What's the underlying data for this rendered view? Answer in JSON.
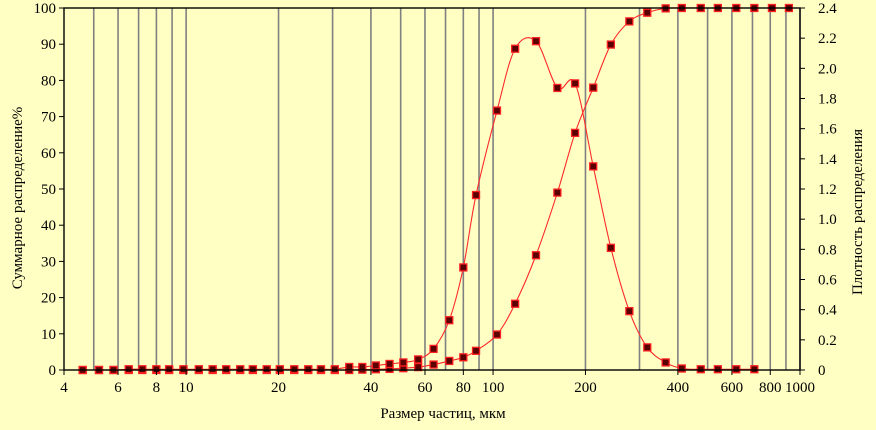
{
  "chart_data": {
    "type": "scatter",
    "xlabel": "Размер частиц, мкм",
    "ylabel_left": "Суммарное распределение%",
    "ylabel_right": "Плотность распределения",
    "x_scale": "log",
    "xlim": [
      4,
      1000
    ],
    "ylim_left": [
      0,
      100
    ],
    "ylim_right": [
      0,
      2.4
    ],
    "grid": true,
    "colors": {
      "background": "#ffffc4",
      "grid": "#808080",
      "curve": "#ff2a2a",
      "marker_fill": "#5a0000",
      "marker_edge": "#ff2020"
    },
    "x_ticks": [
      {
        "value": 4,
        "label": "4"
      },
      {
        "value": 6,
        "label": "6"
      },
      {
        "value": 8,
        "label": "8"
      },
      {
        "value": 10,
        "label": "10"
      },
      {
        "value": 20,
        "label": "20"
      },
      {
        "value": 40,
        "label": "40"
      },
      {
        "value": 60,
        "label": "60"
      },
      {
        "value": 80,
        "label": "80"
      },
      {
        "value": 100,
        "label": "100"
      },
      {
        "value": 200,
        "label": "200"
      },
      {
        "value": 400,
        "label": "400"
      },
      {
        "value": 600,
        "label": "600"
      },
      {
        "value": 800,
        "label": "800"
      },
      {
        "value": 1000,
        "label": "1000"
      }
    ],
    "y_left_ticks": [
      "0",
      "10",
      "20",
      "30",
      "40",
      "50",
      "60",
      "70",
      "80",
      "90",
      "100"
    ],
    "y_right_ticks": [
      "0",
      "0.2",
      "0.4",
      "0.6",
      "0.8",
      "1.0",
      "1.2",
      "1.4",
      "1.6",
      "1.8",
      "2.0",
      "2.2",
      "2.4"
    ],
    "x_gridlines": [
      5,
      6,
      7,
      8,
      9,
      10,
      20,
      30,
      40,
      50,
      60,
      70,
      80,
      90,
      100,
      200,
      300,
      400,
      500,
      600,
      700,
      800,
      900,
      1000
    ],
    "series": [
      {
        "axis": "left",
        "points": [
          [
            4.6,
            0
          ],
          [
            5.2,
            0
          ],
          [
            5.8,
            0
          ],
          [
            6.5,
            0
          ],
          [
            7.2,
            0
          ],
          [
            8.0,
            0
          ],
          [
            8.8,
            0
          ],
          [
            9.8,
            0
          ],
          [
            11,
            0
          ],
          [
            12.2,
            0
          ],
          [
            13.5,
            0
          ],
          [
            15,
            0
          ],
          [
            16.5,
            0
          ],
          [
            18.3,
            0
          ],
          [
            20.2,
            0
          ],
          [
            22.5,
            0
          ],
          [
            25,
            0
          ],
          [
            27.5,
            0
          ],
          [
            30.5,
            0
          ],
          [
            34,
            0
          ],
          [
            37.5,
            0.1
          ],
          [
            41.5,
            0.2
          ],
          [
            46,
            0.3
          ],
          [
            51,
            0.5
          ],
          [
            57,
            0.8
          ],
          [
            64,
            1.5
          ],
          [
            72,
            2.5
          ],
          [
            80,
            3.5
          ],
          [
            88,
            5.3
          ],
          [
            103,
            9.8
          ],
          [
            118,
            18.3
          ],
          [
            138,
            31.7
          ],
          [
            162,
            49.0
          ],
          [
            185,
            65.5
          ],
          [
            212,
            78.0
          ],
          [
            242,
            89.9
          ],
          [
            278,
            96.3
          ],
          [
            318,
            98.7
          ],
          [
            365,
            99.9
          ],
          [
            412,
            100
          ],
          [
            475,
            100
          ],
          [
            540,
            100
          ],
          [
            620,
            100
          ],
          [
            710,
            100
          ],
          [
            810,
            100
          ],
          [
            920,
            100
          ]
        ]
      },
      {
        "axis": "right",
        "points": [
          [
            4.6,
            0
          ],
          [
            5.2,
            0
          ],
          [
            5.8,
            0
          ],
          [
            6.5,
            0.005
          ],
          [
            7.2,
            0.005
          ],
          [
            8.0,
            0.005
          ],
          [
            8.8,
            0.005
          ],
          [
            9.8,
            0.005
          ],
          [
            11,
            0.005
          ],
          [
            12.2,
            0.005
          ],
          [
            13.5,
            0.005
          ],
          [
            15,
            0.005
          ],
          [
            16.5,
            0.005
          ],
          [
            18.3,
            0.005
          ],
          [
            20.2,
            0.005
          ],
          [
            22.5,
            0.005
          ],
          [
            25,
            0.005
          ],
          [
            27.5,
            0.005
          ],
          [
            30.5,
            0.005
          ],
          [
            34,
            0.02
          ],
          [
            37.5,
            0.02
          ],
          [
            41.5,
            0.03
          ],
          [
            46,
            0.04
          ],
          [
            51,
            0.05
          ],
          [
            57,
            0.07
          ],
          [
            64,
            0.14
          ],
          [
            72,
            0.33
          ],
          [
            80,
            0.68
          ],
          [
            88,
            1.16
          ],
          [
            103,
            1.72
          ],
          [
            118,
            2.13
          ],
          [
            138,
            2.18
          ],
          [
            162,
            1.87
          ],
          [
            185,
            1.9
          ],
          [
            212,
            1.35
          ],
          [
            242,
            0.81
          ],
          [
            278,
            0.39
          ],
          [
            318,
            0.15
          ],
          [
            365,
            0.05
          ],
          [
            412,
            0.01
          ],
          [
            475,
            0.005
          ],
          [
            540,
            0.005
          ],
          [
            620,
            0.005
          ],
          [
            710,
            0.005
          ]
        ]
      }
    ]
  }
}
